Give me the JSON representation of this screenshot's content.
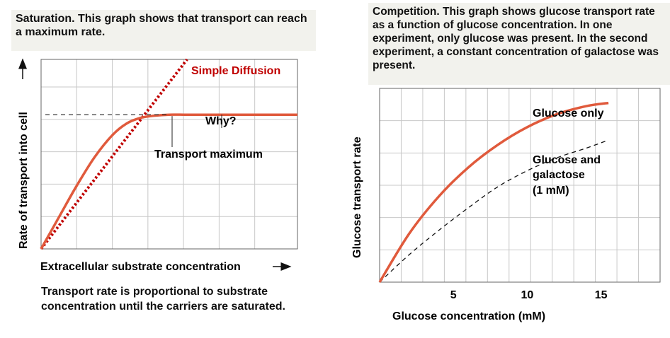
{
  "left_caption": {
    "lead": "Saturation.",
    "text": " This graph shows that transport can reach a maximum rate."
  },
  "right_caption": {
    "lead": "Competition.",
    "text": " This graph shows glucose transport rate as a function of glucose concentration. In one experiment, only glucose was present. In the second experiment, a constant concentration of galactose was present."
  },
  "left_note": "Transport rate is proportional to substrate concentration until the carriers are saturated.",
  "colors": {
    "curve": "#e05a3c",
    "diffusion": "#c00000",
    "grid": "#c8c8c8",
    "caption_bg": "#f2f2ed"
  },
  "chart_data": [
    {
      "type": "line",
      "xlabel": "Extracellular substrate concentration",
      "ylabel": "Rate of transport into cell",
      "grid": true,
      "xlim": [
        0,
        7.2
      ],
      "ylim": [
        0,
        6
      ],
      "series": [
        {
          "name": "Simple Diffusion",
          "style": "dotted",
          "x": [
            0,
            4.1
          ],
          "y": [
            0,
            6
          ]
        },
        {
          "name": "Transport",
          "style": "solid",
          "x": [
            0,
            0.5,
            1,
            1.5,
            2,
            2.4,
            2.8,
            3.2,
            3.6,
            4.0,
            5.0,
            6.0,
            7.2
          ],
          "y": [
            0,
            1.0,
            2.0,
            2.9,
            3.6,
            3.97,
            4.15,
            4.22,
            4.25,
            4.25,
            4.25,
            4.25,
            4.25
          ]
        }
      ],
      "annotations": {
        "diffusion_label": "Simple Diffusion",
        "why_label": "Why?",
        "max_label": "Transport maximum",
        "max_level": 4.25
      }
    },
    {
      "type": "line",
      "xlabel": "Glucose concentration (mM)",
      "ylabel": "Glucose transport rate",
      "grid": true,
      "xlim": [
        0,
        19
      ],
      "ylim": [
        0,
        6
      ],
      "x_ticks": [
        5,
        10,
        15
      ],
      "series": [
        {
          "name": "Glucose only",
          "style": "solid",
          "x": [
            0,
            2,
            4,
            6,
            8,
            10,
            12,
            14,
            15.5
          ],
          "y": [
            0,
            1.5,
            2.65,
            3.55,
            4.25,
            4.8,
            5.2,
            5.45,
            5.55
          ]
        },
        {
          "name": "Glucose and galactose (1 mM)",
          "style": "dashed",
          "x": [
            0,
            2,
            4,
            6,
            8,
            10,
            12,
            14,
            15.5
          ],
          "y": [
            0,
            0.85,
            1.6,
            2.3,
            2.95,
            3.45,
            3.85,
            4.15,
            4.4
          ]
        }
      ],
      "labels": {
        "glucose_only": "Glucose only",
        "with_galactose_1": "Glucose and",
        "with_galactose_2": "galactose",
        "with_galactose_3": "(1 mM)"
      }
    }
  ]
}
